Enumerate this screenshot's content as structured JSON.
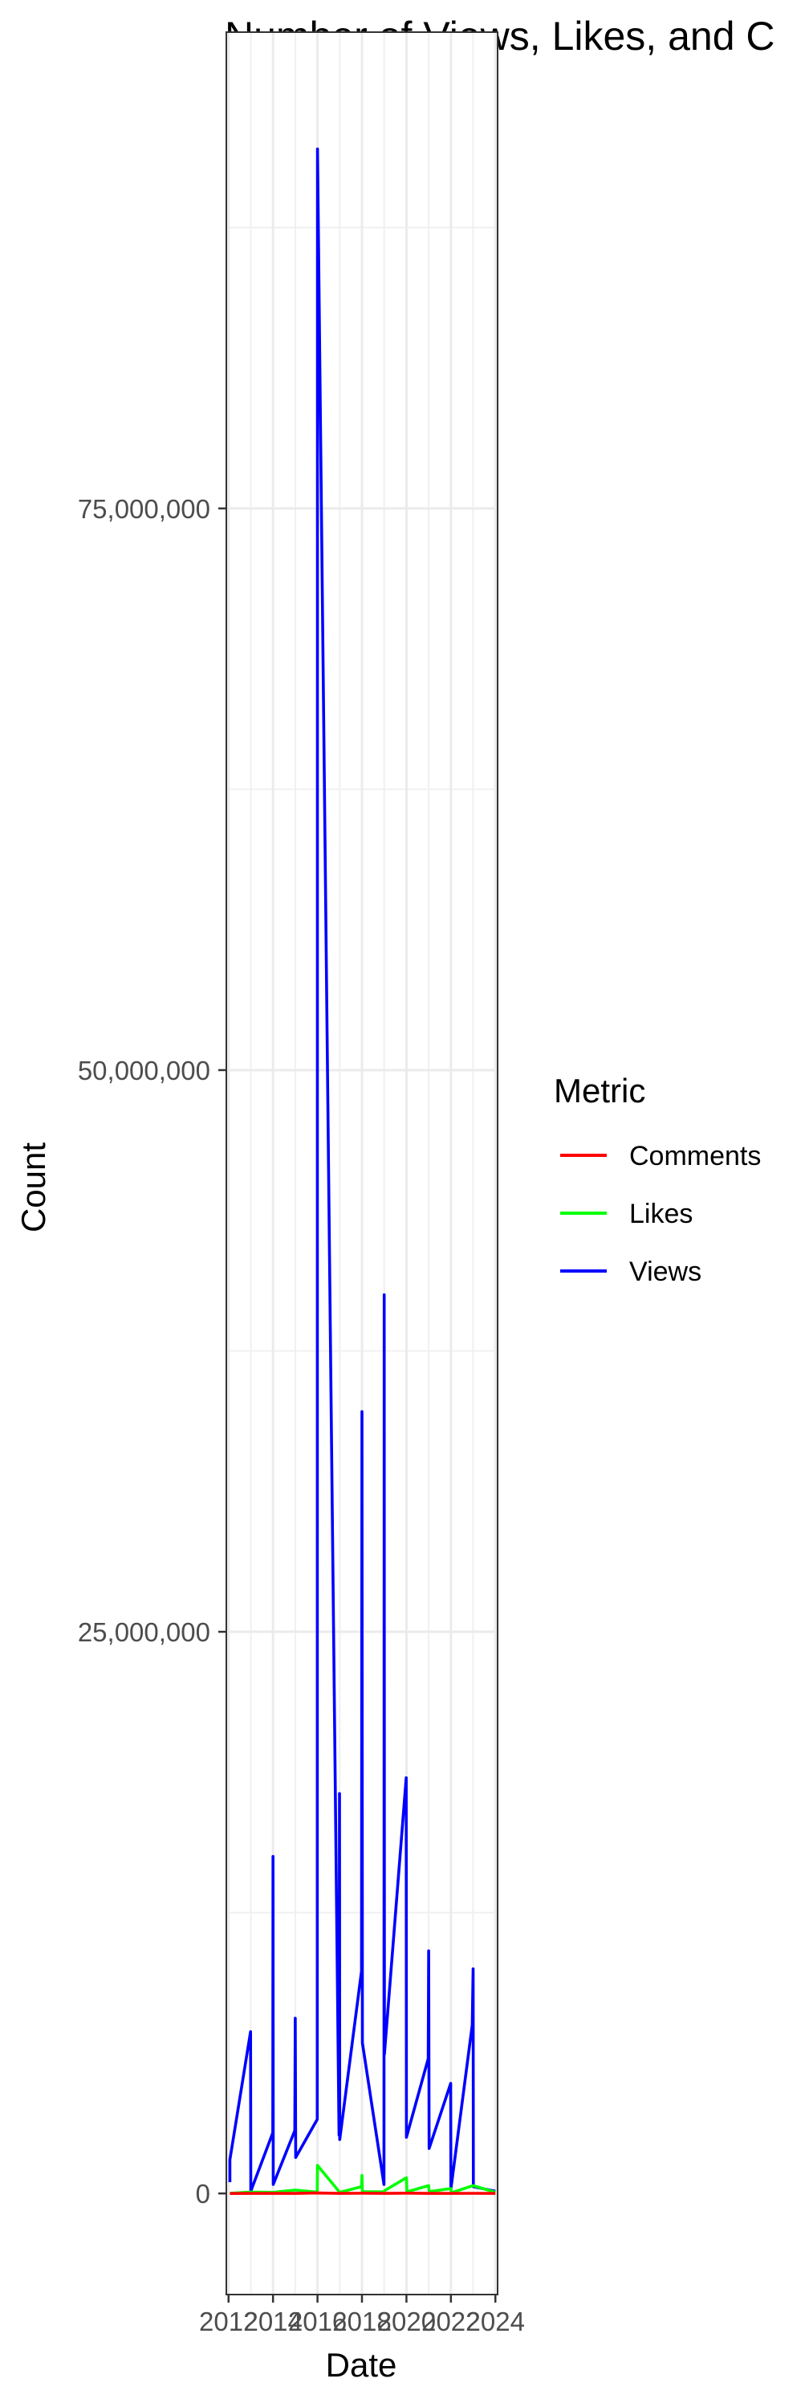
{
  "chart_data": {
    "type": "line",
    "title": "Number of Views, Likes, and C",
    "xlabel": "Date",
    "ylabel": "Count",
    "x_ticks": [
      2012,
      2014,
      2016,
      2018,
      2020,
      2022,
      2024
    ],
    "x_tick_labels": [
      "2012",
      "2014",
      "2016",
      "2018",
      "2020",
      "2022",
      "2024"
    ],
    "y_ticks": [
      0,
      25000000,
      50000000,
      75000000
    ],
    "y_tick_labels": [
      "0",
      "25,000,000",
      "50,000,000",
      "75,000,000"
    ],
    "xlim": [
      2011.9,
      2024.1
    ],
    "ylim": [
      -4500000,
      96200000
    ],
    "grid": true,
    "legend": {
      "title": "Metric",
      "position": "right",
      "entries": [
        "Comments",
        "Likes",
        "Views"
      ]
    },
    "colors": {
      "Comments": "#ff0000",
      "Likes": "#00ff00",
      "Views": "#0000ff"
    },
    "series": [
      {
        "name": "Views",
        "color": "#0000ff",
        "points": [
          [
            2012.06,
            500000
          ],
          [
            2012.06,
            1500000
          ],
          [
            2012.99,
            7200000
          ],
          [
            2013.0,
            100000
          ],
          [
            2013.99,
            2700000
          ],
          [
            2014.0,
            15000000
          ],
          [
            2014.01,
            400000
          ],
          [
            2014.98,
            2800000
          ],
          [
            2015.0,
            7800000
          ],
          [
            2015.02,
            1600000
          ],
          [
            2015.99,
            3300000
          ],
          [
            2016.0,
            91000000
          ],
          [
            2016.97,
            2600000
          ],
          [
            2016.99,
            17800000
          ],
          [
            2017.0,
            2400000
          ],
          [
            2017.98,
            9900000
          ],
          [
            2018.0,
            34800000
          ],
          [
            2018.02,
            6700000
          ],
          [
            2018.99,
            400000
          ],
          [
            2019.0,
            40000000
          ],
          [
            2019.01,
            6200000
          ],
          [
            2019.99,
            18500000
          ],
          [
            2020.0,
            2500000
          ],
          [
            2020.98,
            6000000
          ],
          [
            2021.0,
            10800000
          ],
          [
            2021.02,
            2000000
          ],
          [
            2021.99,
            4900000
          ],
          [
            2022.0,
            200000
          ],
          [
            2022.96,
            7500000
          ],
          [
            2023.0,
            10000000
          ],
          [
            2023.01,
            300000
          ],
          [
            2024.0,
            100000
          ]
        ]
      },
      {
        "name": "Likes",
        "color": "#00ff00",
        "points": [
          [
            2012.06,
            10000
          ],
          [
            2013.0,
            60000
          ],
          [
            2014.0,
            50000
          ],
          [
            2015.0,
            150000
          ],
          [
            2015.99,
            60000
          ],
          [
            2016.0,
            1250000
          ],
          [
            2017.0,
            50000
          ],
          [
            2017.98,
            300000
          ],
          [
            2018.0,
            800000
          ],
          [
            2018.02,
            80000
          ],
          [
            2019.0,
            70000
          ],
          [
            2019.01,
            120000
          ],
          [
            2020.0,
            700000
          ],
          [
            2020.02,
            70000
          ],
          [
            2021.0,
            350000
          ],
          [
            2021.02,
            80000
          ],
          [
            2022.0,
            220000
          ],
          [
            2022.02,
            30000
          ],
          [
            2023.0,
            350000
          ],
          [
            2024.0,
            50000
          ]
        ]
      },
      {
        "name": "Comments",
        "color": "#ff0000",
        "points": [
          [
            2012.06,
            0
          ],
          [
            2013.0,
            3000
          ],
          [
            2014.0,
            2000
          ],
          [
            2015.0,
            5000
          ],
          [
            2016.0,
            20000
          ],
          [
            2017.0,
            2000
          ],
          [
            2018.0,
            10000
          ],
          [
            2019.0,
            3000
          ],
          [
            2020.0,
            12000
          ],
          [
            2021.0,
            5000
          ],
          [
            2022.0,
            4000
          ],
          [
            2023.0,
            6000
          ],
          [
            2024.0,
            2000
          ]
        ]
      }
    ]
  }
}
